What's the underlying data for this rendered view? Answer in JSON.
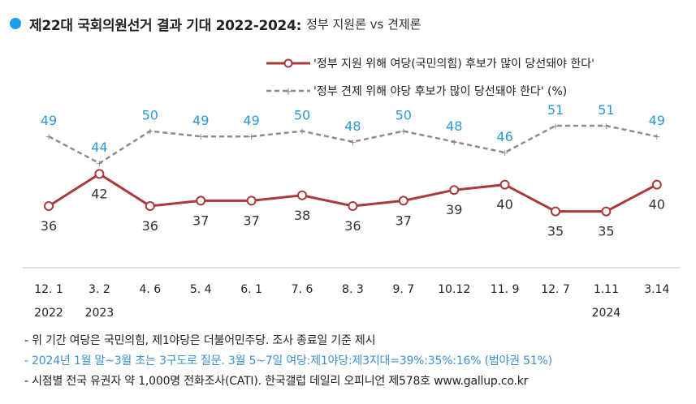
{
  "header": {
    "title": "제22대 국회의원선거 결과 기대 2022-2024:",
    "subtitle": "정부 지원론 vs 견제론"
  },
  "chart_data": {
    "type": "line",
    "categories": [
      "12. 1",
      "3. 2",
      "4. 6",
      "5. 4",
      "6. 1",
      "7. 6",
      "8. 3",
      "9. 7",
      "10.12",
      "11. 9",
      "12. 7",
      "1.11",
      "3.14"
    ],
    "year_labels": [
      {
        "index": 0,
        "label": "2022"
      },
      {
        "index": 1,
        "label": "2023"
      },
      {
        "index": 11,
        "label": "2024"
      }
    ],
    "series": [
      {
        "name": "'정부 지원 위해 여당(국민의힘) 후보가 많이 당선돼야 한다'",
        "values": [
          36,
          42,
          36,
          37,
          37,
          38,
          36,
          37,
          39,
          40,
          35,
          35,
          40
        ],
        "color": "#a83a3a"
      },
      {
        "name": "'정부 견제 위해 야당 후보가 많이 당선돼야 한다' (%)",
        "values": [
          49,
          44,
          50,
          49,
          49,
          50,
          48,
          50,
          48,
          46,
          51,
          51,
          49
        ],
        "color": "#8c8c8c"
      }
    ],
    "ylim": [
      20,
      60
    ],
    "grid": false,
    "legend": "top-right"
  },
  "label_colors": {
    "support": "#333333",
    "oppose": "#2a9ad6"
  },
  "notes": [
    "- 위 기간 여당은 국민의힘, 제1야당은 더불어민주당. 조사 종료일 기준 제시",
    "- 2024년 1월 말~3월 초는 3구도로 질문. 3월 5~7일 여당:제1야당:제3지대=39%:35%:16% (범야권 51%)",
    "- 시점별 전국 유권자 약 1,000명 전화조사(CATI). 한국갤럽 데일리 오피니언 제578호 www.gallup.co.kr"
  ]
}
